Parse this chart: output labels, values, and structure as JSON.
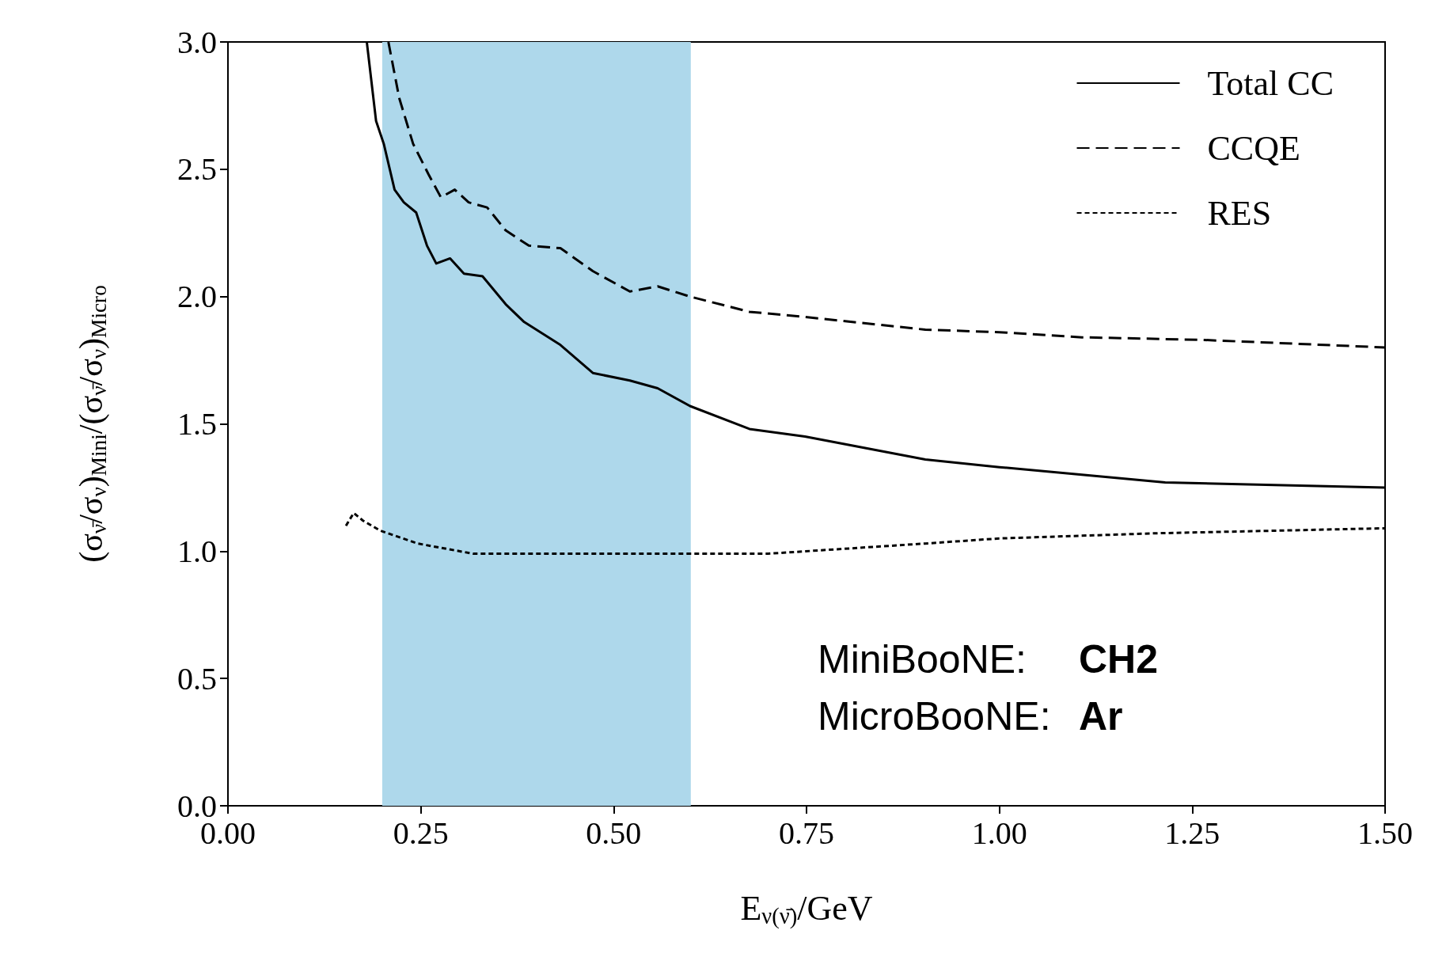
{
  "chart_data": {
    "type": "line",
    "xlabel": "E$_{ν(ν̄)}$/GeV",
    "ylabel": "(σ$_{ν̄}$/σ$_{ν}$)$_{Mini}$/(σ$_{ν̄}$/σ$_{ν}$)$_{Micro}$",
    "xlim": [
      0,
      1.5
    ],
    "xticks": [
      {
        "value": 0,
        "label": "0.00"
      },
      {
        "value": 0.25,
        "label": "0.25"
      },
      {
        "value": 0.5,
        "label": "0.50"
      },
      {
        "value": 0.75,
        "label": "0.75"
      },
      {
        "value": 1,
        "label": "1.00"
      },
      {
        "value": 1.25,
        "label": "1.25"
      },
      {
        "value": 1.5,
        "label": "1.50"
      }
    ],
    "ylim": [
      0,
      3
    ],
    "yticks": [
      {
        "value": 0,
        "label": "0.0"
      },
      {
        "value": 0.5,
        "label": "0.5"
      },
      {
        "value": 1,
        "label": "1.0"
      },
      {
        "value": 1.5,
        "label": "1.5"
      },
      {
        "value": 2,
        "label": "2.0"
      },
      {
        "value": 2.5,
        "label": "2.5"
      },
      {
        "value": 3,
        "label": "3.0"
      }
    ],
    "grid": false,
    "legend": "top right",
    "marker": "none",
    "bands": [
      {
        "axis": "x",
        "from": 0.2,
        "to": 0.6,
        "color": "#aed8eb"
      }
    ],
    "annotations": [
      "MiniBooNE: CH2",
      "MicroBooNE: Ar"
    ],
    "series": [
      {
        "name": "Total CC",
        "color": "#000000",
        "line_style": "solid",
        "x": [
          0.18,
          0.192,
          0.202,
          0.216,
          0.228,
          0.244,
          0.258,
          0.27,
          0.288,
          0.306,
          0.33,
          0.36,
          0.384,
          0.431,
          0.473,
          0.521,
          0.557,
          0.599,
          0.676,
          0.748,
          0.904,
          1.0,
          1.107,
          1.215,
          1.5
        ],
        "values": [
          3.0,
          2.69,
          2.6,
          2.42,
          2.37,
          2.33,
          2.2,
          2.13,
          2.15,
          2.09,
          2.08,
          1.97,
          1.9,
          1.81,
          1.7,
          1.67,
          1.64,
          1.57,
          1.48,
          1.45,
          1.36,
          1.33,
          1.3,
          1.27,
          1.25
        ]
      },
      {
        "name": "CCQE",
        "color": "#000000",
        "line_style": "dashed",
        "x": [
          0.208,
          0.222,
          0.24,
          0.26,
          0.276,
          0.294,
          0.312,
          0.336,
          0.36,
          0.39,
          0.431,
          0.473,
          0.521,
          0.557,
          0.599,
          0.676,
          0.748,
          0.904,
          1.0,
          1.107,
          1.262,
          1.5
        ],
        "values": [
          3.0,
          2.78,
          2.6,
          2.48,
          2.39,
          2.42,
          2.37,
          2.35,
          2.26,
          2.2,
          2.19,
          2.1,
          2.02,
          2.04,
          2.0,
          1.94,
          1.92,
          1.87,
          1.86,
          1.84,
          1.83,
          1.8
        ]
      },
      {
        "name": "RES",
        "color": "#000000",
        "line_style": "dotted",
        "x": [
          0.153,
          0.163,
          0.175,
          0.198,
          0.246,
          0.318,
          0.6,
          0.7,
          0.904,
          1.0,
          1.2,
          1.5
        ],
        "values": [
          1.1,
          1.15,
          1.12,
          1.08,
          1.03,
          0.99,
          0.99,
          0.99,
          1.03,
          1.05,
          1.07,
          1.09
        ]
      }
    ]
  }
}
